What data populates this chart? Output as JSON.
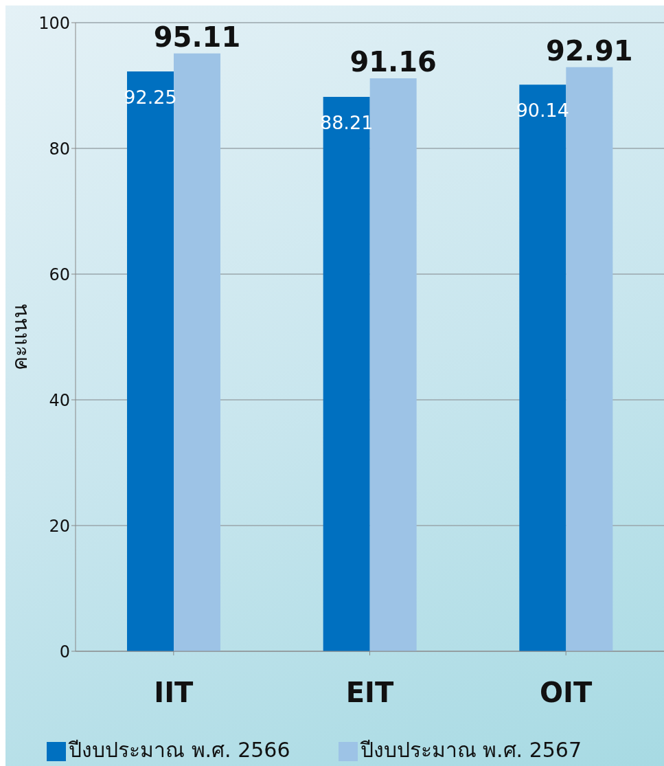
{
  "chart_data": {
    "type": "bar",
    "ylabel": "คะแนน",
    "categories": [
      "IIT",
      "EIT",
      "OIT"
    ],
    "series": [
      {
        "name": "ปีงบประมาณ พ.ศ. 2566",
        "color": "#0070c0",
        "values": [
          92.25,
          88.21,
          90.14
        ]
      },
      {
        "name": "ปีงบประมาณ พ.ศ. 2567",
        "color": "#9dc3e6",
        "values": [
          95.11,
          91.16,
          92.91
        ]
      }
    ],
    "ylim": [
      0,
      100
    ],
    "yticks": [
      0,
      20,
      40,
      60,
      80,
      100
    ],
    "grid": "y",
    "legend": "bottom",
    "data_labels": true
  }
}
